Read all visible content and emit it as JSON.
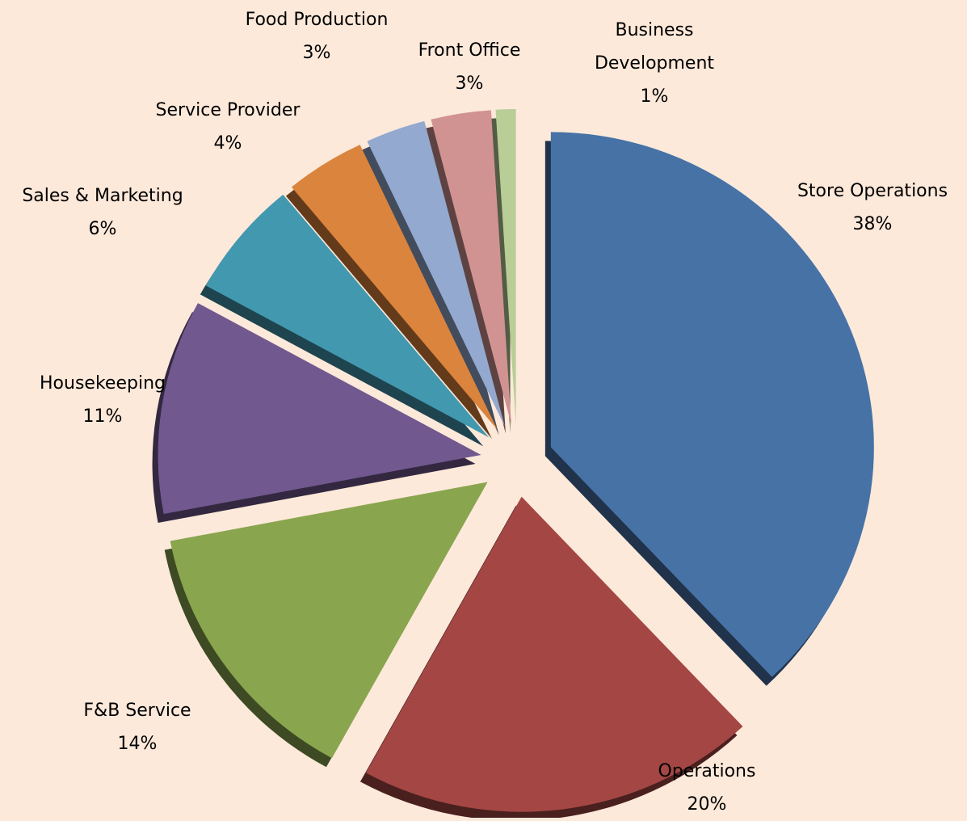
{
  "chart_data": {
    "type": "pie",
    "categories": [
      "Store Operations",
      "Operations",
      "F&B Service",
      "Housekeeping",
      "Sales & Marketing",
      "Service Provider",
      "Food Production",
      "Front Office",
      "Business Development"
    ],
    "values": [
      38,
      20,
      14,
      11,
      6,
      4,
      3,
      3,
      1
    ],
    "value_labels": [
      "38%",
      "20%",
      "14%",
      "11%",
      "6%",
      "4%",
      "3%",
      "3%",
      "1%"
    ],
    "colors": [
      "#4672a6",
      "#a44744",
      "#89a54e",
      "#71588f",
      "#4298af",
      "#db843d",
      "#93a9cf",
      "#d19392",
      "#b9cd96"
    ]
  }
}
